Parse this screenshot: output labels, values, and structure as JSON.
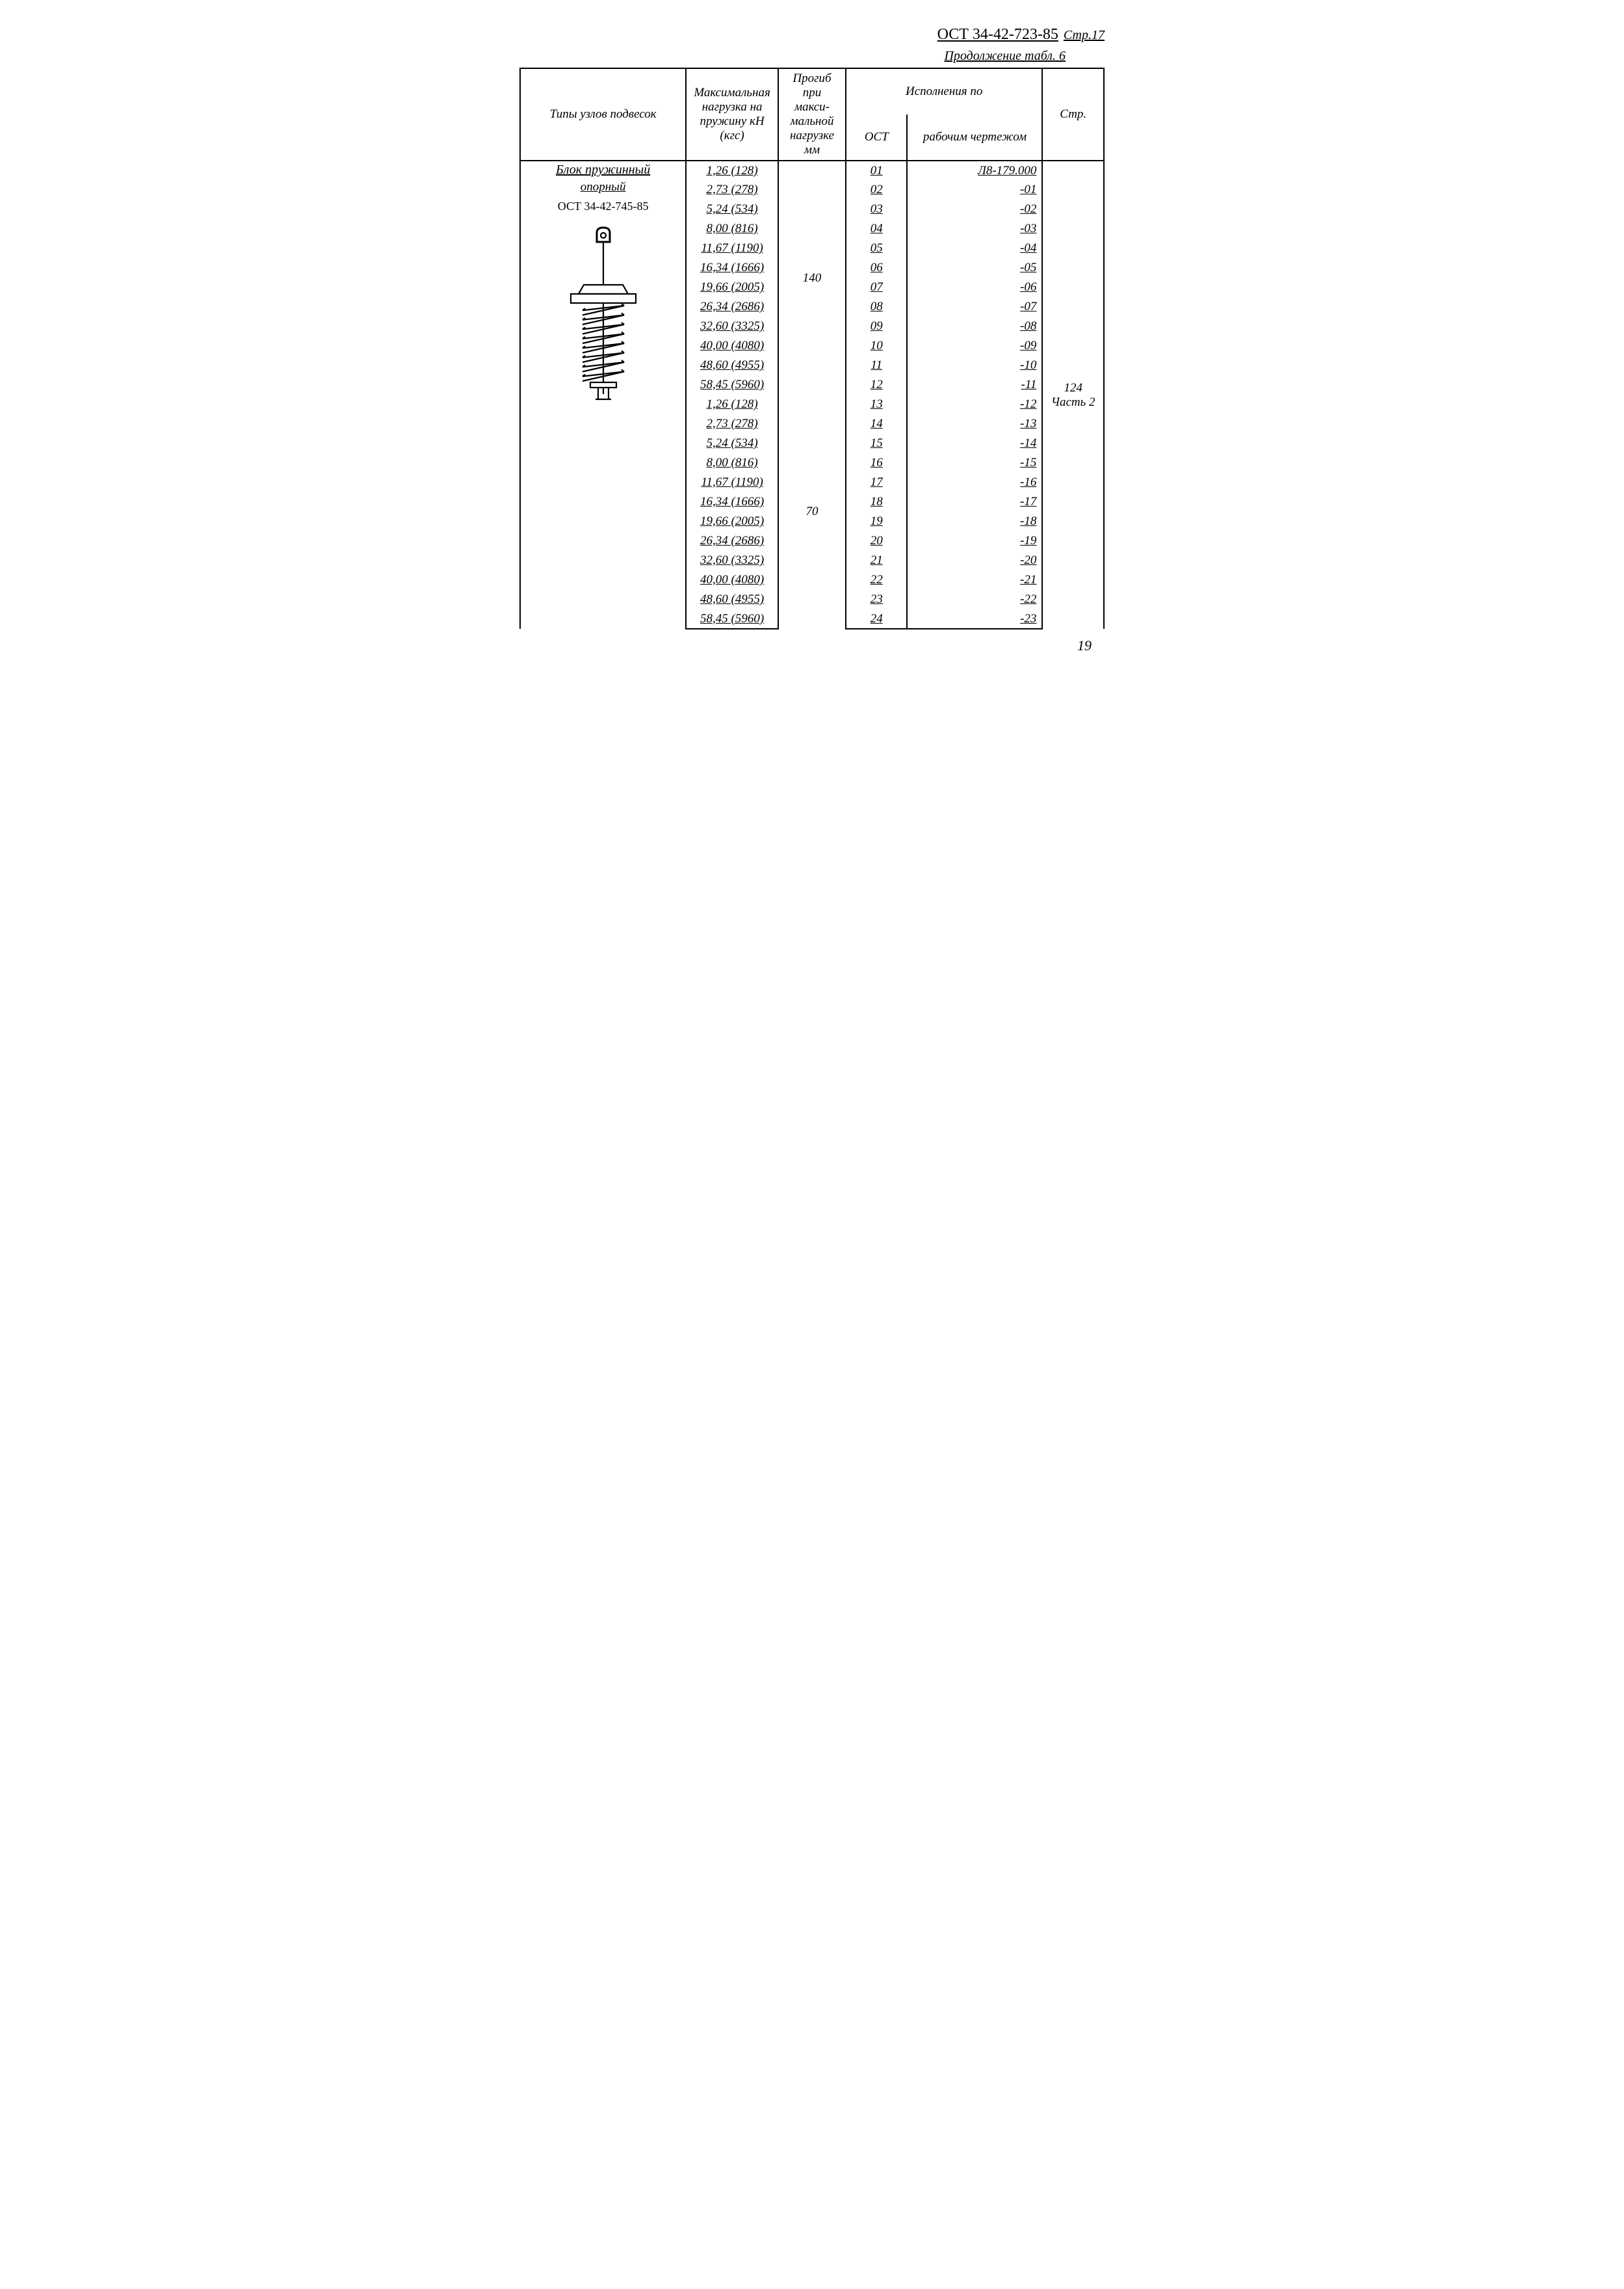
{
  "document_id": "ОСТ 34-42-723-85",
  "document_page_label": "Стр.17",
  "continuation": "Продолжение табл. 6",
  "headers": {
    "types": "Типы узлов подвесок",
    "max_load": "Максималь­ная нагрузка на пружину кН (кгс)",
    "deflection": "Прогиб при макси­мальной нагрузке мм",
    "exec_group": "Исполнения по",
    "ost": "ОСТ",
    "drawing": "рабочим чертежом",
    "page": "Стр."
  },
  "type_block": {
    "title": "Блок пружинный",
    "subtitle": "опорный",
    "code": "ОСТ 34-42-745-85"
  },
  "group1": {
    "deflection": "140",
    "draw_prefix": "Л8-179.000",
    "rows": [
      {
        "load": "1,26 (128)",
        "ost": "01",
        "draw": "Л8-179.000"
      },
      {
        "load": "2,73 (278)",
        "ost": "02",
        "draw": "-01"
      },
      {
        "load": "5,24 (534)",
        "ost": "03",
        "draw": "-02"
      },
      {
        "load": "8,00 (816)",
        "ost": "04",
        "draw": "-03"
      },
      {
        "load": "11,67 (1190)",
        "ost": "05",
        "draw": "-04"
      },
      {
        "load": "16,34 (1666)",
        "ost": "06",
        "draw": "-05"
      },
      {
        "load": "19,66 (2005)",
        "ost": "07",
        "draw": "-06"
      },
      {
        "load": "26,34 (2686)",
        "ost": "08",
        "draw": "-07"
      },
      {
        "load": "32,60 (3325)",
        "ost": "09",
        "draw": "-08"
      },
      {
        "load": "40,00 (4080)",
        "ost": "10",
        "draw": "-09"
      },
      {
        "load": "48,60 (4955)",
        "ost": "11",
        "draw": "-10"
      },
      {
        "load": "58,45 (5960)",
        "ost": "12",
        "draw": "-11"
      }
    ]
  },
  "group2": {
    "deflection": "70",
    "rows": [
      {
        "load": "1,26 (128)",
        "ost": "13",
        "draw": "-12"
      },
      {
        "load": "2,73 (278)",
        "ost": "14",
        "draw": "-13"
      },
      {
        "load": "5,24 (534)",
        "ost": "15",
        "draw": "-14"
      },
      {
        "load": "8,00 (816)",
        "ost": "16",
        "draw": "-15"
      },
      {
        "load": "11,67 (1190)",
        "ost": "17",
        "draw": "-16"
      },
      {
        "load": "16,34 (1666)",
        "ost": "18",
        "draw": "-17"
      },
      {
        "load": "19,66 (2005)",
        "ost": "19",
        "draw": "-18"
      },
      {
        "load": "26,34 (2686)",
        "ost": "20",
        "draw": "-19"
      },
      {
        "load": "32,60 (3325)",
        "ost": "21",
        "draw": "-20"
      },
      {
        "load": "40,00 (4080)",
        "ost": "22",
        "draw": "-21"
      },
      {
        "load": "48,60 (4955)",
        "ost": "23",
        "draw": "-22"
      },
      {
        "load": "58,45 (5960)",
        "ost": "24",
        "draw": "-23"
      }
    ]
  },
  "page_ref": {
    "num": "124",
    "part": "Часть 2"
  },
  "footer_page": "19",
  "svg": {
    "stroke": "#000000",
    "stroke_width": 2.2
  }
}
